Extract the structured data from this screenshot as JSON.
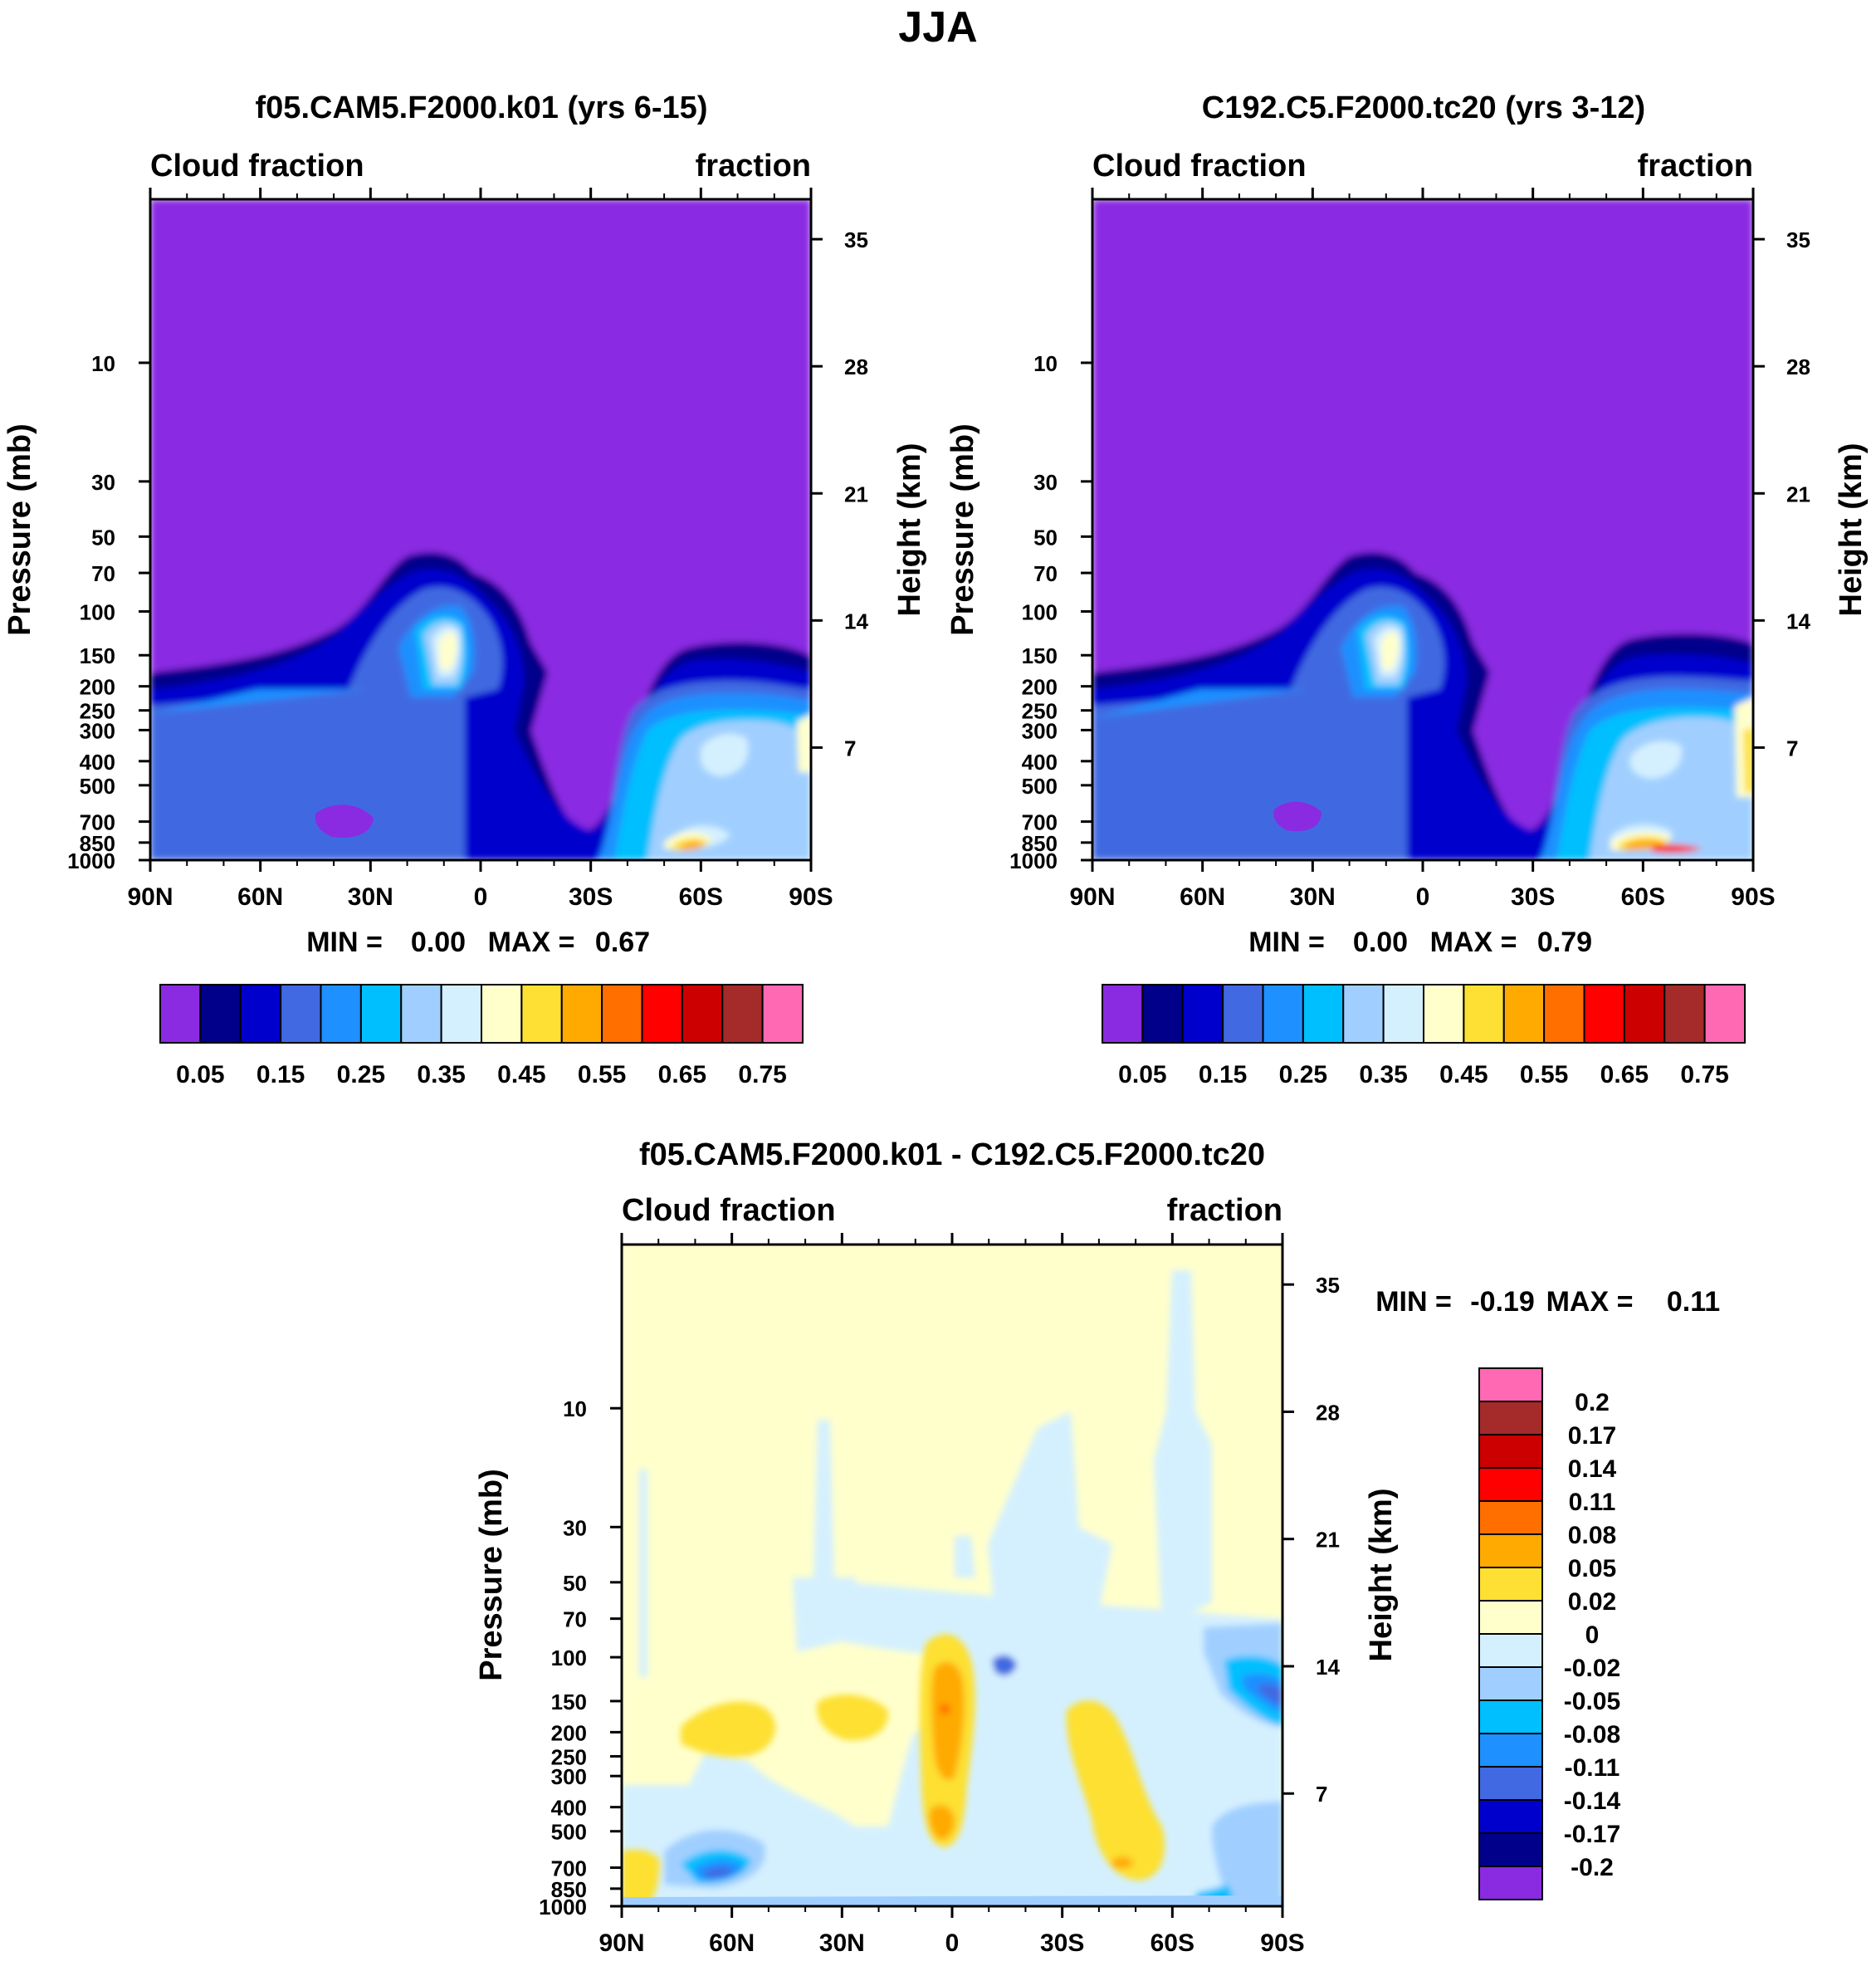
{
  "figure": {
    "title": "JJA"
  },
  "chart_data": [
    {
      "type": "heatmap",
      "title": "f05.CAM5.F2000.k01 (yrs 6-15)",
      "left_label": "Cloud fraction",
      "right_label": "fraction",
      "ylabel": "Pressure (mb)",
      "ylabel_right": "Height (km)",
      "x_ticks": [
        "90N",
        "60N",
        "30N",
        "0",
        "30S",
        "60S",
        "90S"
      ],
      "y_ticks": [
        "10",
        "30",
        "50",
        "70",
        "100",
        "150",
        "200",
        "250",
        "300",
        "400",
        "500",
        "700",
        "850",
        "1000"
      ],
      "y_ticks_right": [
        "35",
        "28",
        "21",
        "14",
        "7"
      ],
      "stats": {
        "min_label": "MIN =",
        "min": "0.00",
        "max_label": "MAX =",
        "max": "0.67"
      },
      "colorbar_labels": [
        "0.05",
        "0.15",
        "0.25",
        "0.35",
        "0.45",
        "0.55",
        "0.65",
        "0.75"
      ],
      "colorbar_levels": [
        0.05,
        0.1,
        0.15,
        0.2,
        0.25,
        0.3,
        0.35,
        0.4,
        0.45,
        0.5,
        0.55,
        0.6,
        0.65,
        0.7,
        0.75
      ],
      "colors": [
        "#8a2be2",
        "#00008b",
        "#0000cd",
        "#4169e1",
        "#1e90ff",
        "#00bfff",
        "#a0cfff",
        "#d4f0ff",
        "#ffffcc",
        "#fde033",
        "#ffaa00",
        "#ff6f00",
        "#ff0000",
        "#cc0000",
        "#a52a2a",
        "#ff69b4"
      ]
    },
    {
      "type": "heatmap",
      "title": "C192.C5.F2000.tc20 (yrs 3-12)",
      "left_label": "Cloud fraction",
      "right_label": "fraction",
      "ylabel": "Pressure (mb)",
      "ylabel_right": "Height (km)",
      "x_ticks": [
        "90N",
        "60N",
        "30N",
        "0",
        "30S",
        "60S",
        "90S"
      ],
      "y_ticks": [
        "10",
        "30",
        "50",
        "70",
        "100",
        "150",
        "200",
        "250",
        "300",
        "400",
        "500",
        "700",
        "850",
        "1000"
      ],
      "y_ticks_right": [
        "35",
        "28",
        "21",
        "14",
        "7"
      ],
      "stats": {
        "min_label": "MIN =",
        "min": "0.00",
        "max_label": "MAX =",
        "max": "0.79"
      },
      "colorbar_labels": [
        "0.05",
        "0.15",
        "0.25",
        "0.35",
        "0.45",
        "0.55",
        "0.65",
        "0.75"
      ],
      "colorbar_levels": [
        0.05,
        0.1,
        0.15,
        0.2,
        0.25,
        0.3,
        0.35,
        0.4,
        0.45,
        0.5,
        0.55,
        0.6,
        0.65,
        0.7,
        0.75
      ],
      "colors": [
        "#8a2be2",
        "#00008b",
        "#0000cd",
        "#4169e1",
        "#1e90ff",
        "#00bfff",
        "#a0cfff",
        "#d4f0ff",
        "#ffffcc",
        "#fde033",
        "#ffaa00",
        "#ff6f00",
        "#ff0000",
        "#cc0000",
        "#a52a2a",
        "#ff69b4"
      ]
    },
    {
      "type": "heatmap",
      "title": "f05.CAM5.F2000.k01 - C192.C5.F2000.tc20",
      "left_label": "Cloud fraction",
      "right_label": "fraction",
      "ylabel": "Pressure (mb)",
      "ylabel_right": "Height (km)",
      "x_ticks": [
        "90N",
        "60N",
        "30N",
        "0",
        "30S",
        "60S",
        "90S"
      ],
      "y_ticks": [
        "10",
        "30",
        "50",
        "70",
        "100",
        "150",
        "200",
        "250",
        "300",
        "400",
        "500",
        "700",
        "850",
        "1000"
      ],
      "y_ticks_right": [
        "35",
        "28",
        "21",
        "14",
        "7"
      ],
      "stats": {
        "min_label": "MIN =",
        "min": "-0.19",
        "max_label": "MAX =",
        "max": "0.11"
      },
      "colorbar_labels": [
        "0.2",
        "0.17",
        "0.14",
        "0.11",
        "0.08",
        "0.05",
        "0.02",
        "0",
        "-0.02",
        "-0.05",
        "-0.08",
        "-0.11",
        "-0.14",
        "-0.17",
        "-0.2"
      ],
      "colorbar_levels": [
        0.2,
        0.17,
        0.14,
        0.11,
        0.08,
        0.05,
        0.02,
        0,
        -0.02,
        -0.05,
        -0.08,
        -0.11,
        -0.14,
        -0.17,
        -0.2
      ],
      "colors": [
        "#ff69b4",
        "#a52a2a",
        "#cc0000",
        "#ff0000",
        "#ff6f00",
        "#ffaa00",
        "#fde033",
        "#ffffcc",
        "#d4f0ff",
        "#a0cfff",
        "#00bfff",
        "#1e90ff",
        "#4169e1",
        "#0000cd",
        "#00008b",
        "#8a2be2"
      ]
    }
  ]
}
